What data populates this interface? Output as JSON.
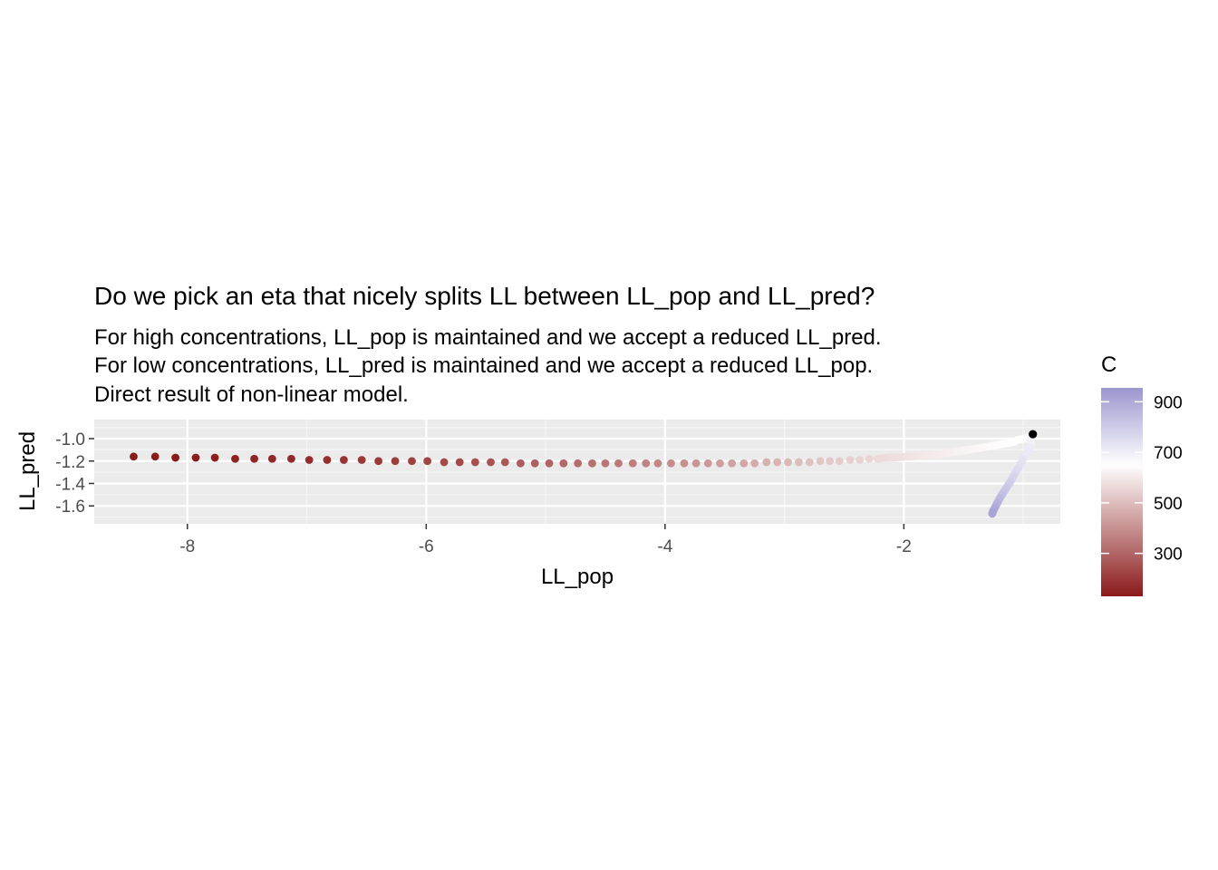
{
  "chart_data": {
    "type": "scatter",
    "title": "Do we pick an eta that nicely splits LL between LL_pop and LL_pred?",
    "subtitle": [
      "For high concentrations, LL_pop is maintained and we accept a reduced LL_pred.",
      "For low concentrations, LL_pred is maintained and we accept a reduced LL_pop.",
      "Direct result of non-linear model."
    ],
    "xlabel": "LL_pop",
    "ylabel": "LL_pred",
    "xlim": [
      -8.78,
      -0.69
    ],
    "ylim": [
      -1.76,
      -0.83
    ],
    "x_ticks": [
      -8,
      -6,
      -4,
      -2
    ],
    "x_tick_labels": [
      "-8",
      "-6",
      "-4",
      "-2"
    ],
    "y_ticks": [
      -1.0,
      -1.2,
      -1.4,
      -1.6
    ],
    "y_tick_labels": [
      "-1.0",
      "-1.2",
      "-1.4",
      "-1.6"
    ],
    "grid": true,
    "background": "#ebebeb",
    "series": [
      {
        "values_description_x": "LL_pop",
        "points": [
          {
            "x": -8.45,
            "y": -1.16,
            "c": 115
          },
          {
            "x": -8.27,
            "y": -1.16,
            "c": 121
          },
          {
            "x": -8.1,
            "y": -1.17,
            "c": 127
          },
          {
            "x": -7.93,
            "y": -1.17,
            "c": 133
          },
          {
            "x": -7.77,
            "y": -1.17,
            "c": 139
          },
          {
            "x": -7.6,
            "y": -1.18,
            "c": 146
          },
          {
            "x": -7.44,
            "y": -1.18,
            "c": 152
          },
          {
            "x": -7.29,
            "y": -1.18,
            "c": 159
          },
          {
            "x": -7.13,
            "y": -1.18,
            "c": 166
          },
          {
            "x": -6.98,
            "y": -1.19,
            "c": 173
          },
          {
            "x": -6.83,
            "y": -1.19,
            "c": 180
          },
          {
            "x": -6.69,
            "y": -1.19,
            "c": 188
          },
          {
            "x": -6.54,
            "y": -1.19,
            "c": 195
          },
          {
            "x": -6.4,
            "y": -1.2,
            "c": 203
          },
          {
            "x": -6.26,
            "y": -1.2,
            "c": 211
          },
          {
            "x": -6.12,
            "y": -1.2,
            "c": 219
          },
          {
            "x": -5.99,
            "y": -1.2,
            "c": 227
          },
          {
            "x": -5.85,
            "y": -1.21,
            "c": 236
          },
          {
            "x": -5.72,
            "y": -1.21,
            "c": 244
          },
          {
            "x": -5.59,
            "y": -1.21,
            "c": 253
          },
          {
            "x": -5.46,
            "y": -1.21,
            "c": 262
          },
          {
            "x": -5.34,
            "y": -1.21,
            "c": 271
          },
          {
            "x": -5.21,
            "y": -1.22,
            "c": 280
          },
          {
            "x": -5.09,
            "y": -1.22,
            "c": 289
          },
          {
            "x": -4.97,
            "y": -1.22,
            "c": 298
          },
          {
            "x": -4.85,
            "y": -1.22,
            "c": 308
          },
          {
            "x": -4.73,
            "y": -1.22,
            "c": 318
          },
          {
            "x": -4.61,
            "y": -1.22,
            "c": 328
          },
          {
            "x": -4.5,
            "y": -1.22,
            "c": 337
          },
          {
            "x": -4.39,
            "y": -1.22,
            "c": 347
          },
          {
            "x": -4.27,
            "y": -1.22,
            "c": 357
          },
          {
            "x": -4.16,
            "y": -1.22,
            "c": 368
          },
          {
            "x": -4.06,
            "y": -1.22,
            "c": 378
          },
          {
            "x": -3.95,
            "y": -1.22,
            "c": 388
          },
          {
            "x": -3.84,
            "y": -1.22,
            "c": 398
          },
          {
            "x": -3.74,
            "y": -1.22,
            "c": 408
          },
          {
            "x": -3.64,
            "y": -1.22,
            "c": 419
          },
          {
            "x": -3.54,
            "y": -1.22,
            "c": 429
          },
          {
            "x": -3.44,
            "y": -1.22,
            "c": 439
          },
          {
            "x": -3.34,
            "y": -1.22,
            "c": 449
          },
          {
            "x": -3.25,
            "y": -1.22,
            "c": 459
          },
          {
            "x": -3.15,
            "y": -1.21,
            "c": 469
          },
          {
            "x": -3.06,
            "y": -1.21,
            "c": 478
          },
          {
            "x": -2.97,
            "y": -1.21,
            "c": 488
          },
          {
            "x": -2.88,
            "y": -1.21,
            "c": 497
          },
          {
            "x": -2.79,
            "y": -1.21,
            "c": 506
          },
          {
            "x": -2.7,
            "y": -1.2,
            "c": 515
          },
          {
            "x": -2.62,
            "y": -1.2,
            "c": 524
          },
          {
            "x": -2.54,
            "y": -1.2,
            "c": 532
          },
          {
            "x": -2.45,
            "y": -1.19,
            "c": 540
          },
          {
            "x": -2.37,
            "y": -1.19,
            "c": 548
          },
          {
            "x": -2.29,
            "y": -1.18,
            "c": 555
          },
          {
            "x": -2.22,
            "y": -1.18,
            "c": 562
          },
          {
            "x": -2.14,
            "y": -1.17,
            "c": 569
          },
          {
            "x": -2.07,
            "y": -1.17,
            "c": 576
          },
          {
            "x": -1.99,
            "y": -1.16,
            "c": 582
          },
          {
            "x": -1.92,
            "y": -1.16,
            "c": 588
          },
          {
            "x": -1.85,
            "y": -1.15,
            "c": 594
          },
          {
            "x": -1.78,
            "y": -1.14,
            "c": 600
          },
          {
            "x": -1.72,
            "y": -1.14,
            "c": 605
          },
          {
            "x": -1.65,
            "y": -1.13,
            "c": 610
          },
          {
            "x": -1.59,
            "y": -1.12,
            "c": 615
          },
          {
            "x": -1.52,
            "y": -1.11,
            "c": 620
          },
          {
            "x": -1.46,
            "y": -1.1,
            "c": 624
          },
          {
            "x": -1.4,
            "y": -1.09,
            "c": 628
          },
          {
            "x": -1.35,
            "y": -1.08,
            "c": 632
          },
          {
            "x": -1.29,
            "y": -1.07,
            "c": 636
          },
          {
            "x": -1.24,
            "y": -1.06,
            "c": 640
          },
          {
            "x": -1.18,
            "y": -1.05,
            "c": 643
          },
          {
            "x": -1.13,
            "y": -1.04,
            "c": 646
          },
          {
            "x": -1.08,
            "y": -1.03,
            "c": 649
          },
          {
            "x": -1.04,
            "y": -1.01,
            "c": 652
          },
          {
            "x": -0.99,
            "y": -1.0,
            "c": 655
          },
          {
            "x": -0.95,
            "y": -0.99,
            "c": 658
          },
          {
            "x": -0.93,
            "y": -1.05,
            "c": 700
          },
          {
            "x": -0.99,
            "y": -1.16,
            "c": 720
          },
          {
            "x": -1.03,
            "y": -1.24,
            "c": 740
          },
          {
            "x": -1.07,
            "y": -1.31,
            "c": 760
          },
          {
            "x": -1.1,
            "y": -1.37,
            "c": 780
          },
          {
            "x": -1.13,
            "y": -1.42,
            "c": 800
          },
          {
            "x": -1.16,
            "y": -1.47,
            "c": 820
          },
          {
            "x": -1.19,
            "y": -1.52,
            "c": 840
          },
          {
            "x": -1.21,
            "y": -1.56,
            "c": 860
          },
          {
            "x": -1.23,
            "y": -1.6,
            "c": 880
          },
          {
            "x": -1.25,
            "y": -1.64,
            "c": 900
          },
          {
            "x": -1.26,
            "y": -1.67,
            "c": 915
          }
        ]
      }
    ],
    "highlight_point": {
      "x": -0.92,
      "y": -0.96,
      "color": "#000000"
    },
    "legend": {
      "title": "C",
      "placement": "right",
      "type": "colorbar",
      "range": [
        130,
        955
      ],
      "breaks": [
        300,
        500,
        700,
        900
      ],
      "break_labels": [
        "300",
        "500",
        "700",
        "900"
      ],
      "low_color": "#8b1a1a",
      "mid_color": "#ffffff",
      "mid_value": 650,
      "high_color": "#9b96cf"
    }
  }
}
